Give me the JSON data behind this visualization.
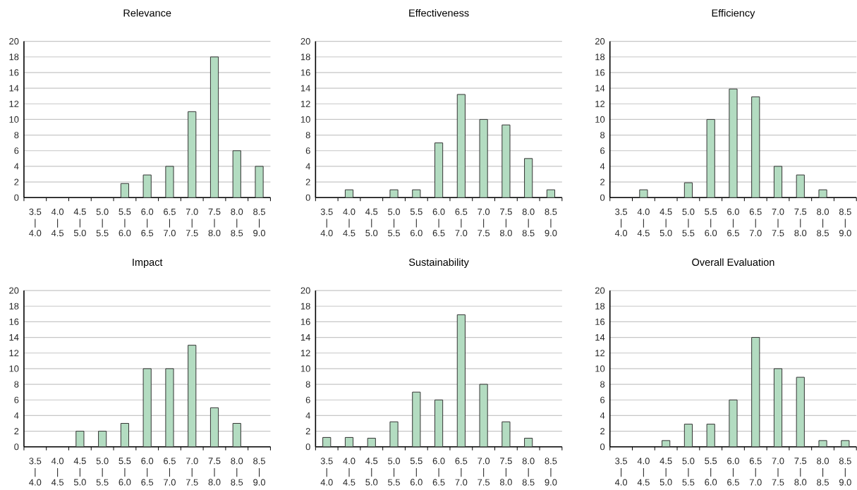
{
  "chart_data": [
    {
      "type": "bar",
      "title": "Relevance",
      "categories": [
        "3.5 | 4.0",
        "4.0 | 4.5",
        "4.5 | 5.0",
        "5.0 | 5.5",
        "5.5 | 6.0",
        "6.0 | 6.5",
        "6.5 | 7.0",
        "7.0 | 7.5",
        "7.5 | 8.0",
        "8.0 | 8.5",
        "8.5 | 9.0"
      ],
      "values": [
        0,
        0,
        0,
        0,
        1.8,
        2.9,
        4,
        11,
        18,
        6,
        4
      ],
      "color": "#b3dcc1",
      "ylim": [
        0,
        20
      ],
      "yticks": [
        0,
        2,
        4,
        6,
        8,
        10,
        12,
        14,
        16,
        18,
        20
      ],
      "grid": "y"
    },
    {
      "type": "bar",
      "title": "Effectiveness",
      "categories": [
        "3.5 | 4.0",
        "4.0 | 4.5",
        "4.5 | 5.0",
        "5.0 | 5.5",
        "5.5 | 6.0",
        "6.0 | 6.5",
        "6.5 | 7.0",
        "7.0 | 7.5",
        "7.5 | 8.0",
        "8.0 | 8.5",
        "8.5 | 9.0"
      ],
      "values": [
        0,
        1,
        0,
        1,
        1,
        7,
        13.2,
        10,
        9.3,
        5,
        1
      ],
      "color": "#b3dcc1",
      "ylim": [
        0,
        20
      ],
      "yticks": [
        0,
        2,
        4,
        6,
        8,
        10,
        12,
        14,
        16,
        18,
        20
      ],
      "grid": "y"
    },
    {
      "type": "bar",
      "title": "Efficiency",
      "categories": [
        "3.5 | 4.0",
        "4.0 | 4.5",
        "4.5 | 5.0",
        "5.0 | 5.5",
        "5.5 | 6.0",
        "6.0 | 6.5",
        "6.5 | 7.0",
        "7.0 | 7.5",
        "7.5 | 8.0",
        "8.0 | 8.5",
        "8.5 | 9.0"
      ],
      "values": [
        0,
        1,
        0,
        1.9,
        10,
        13.9,
        12.9,
        4,
        2.9,
        1,
        0
      ],
      "color": "#b3dcc1",
      "ylim": [
        0,
        20
      ],
      "yticks": [
        0,
        2,
        4,
        6,
        8,
        10,
        12,
        14,
        16,
        18,
        20
      ],
      "grid": "y"
    },
    {
      "type": "bar",
      "title": "Impact",
      "categories": [
        "3.5 | 4.0",
        "4.0 | 4.5",
        "4.5 | 5.0",
        "5.0 | 5.5",
        "5.5 | 6.0",
        "6.0 | 6.5",
        "6.5 | 7.0",
        "7.0 | 7.5",
        "7.5 | 8.0",
        "8.0 | 8.5",
        "8.5 | 9.0"
      ],
      "values": [
        0,
        0,
        2,
        2,
        3,
        10,
        10,
        13,
        5,
        3,
        0
      ],
      "color": "#b3dcc1",
      "ylim": [
        0,
        20
      ],
      "yticks": [
        0,
        2,
        4,
        6,
        8,
        10,
        12,
        14,
        16,
        18,
        20
      ],
      "grid": "y"
    },
    {
      "type": "bar",
      "title": "Sustainability",
      "categories": [
        "3.5 | 4.0",
        "4.0 | 4.5",
        "4.5 | 5.0",
        "5.0 | 5.5",
        "5.5 | 6.0",
        "6.0 | 6.5",
        "6.5 | 7.0",
        "7.0 | 7.5",
        "7.5 | 8.0",
        "8.0 | 8.5",
        "8.5 | 9.0"
      ],
      "values": [
        1.2,
        1.2,
        1.1,
        3.2,
        7,
        6,
        16.9,
        8,
        3.2,
        1.1,
        0
      ],
      "color": "#b3dcc1",
      "ylim": [
        0,
        20
      ],
      "yticks": [
        0,
        2,
        4,
        6,
        8,
        10,
        12,
        14,
        16,
        18,
        20
      ],
      "grid": "y"
    },
    {
      "type": "bar",
      "title": "Overall Evaluation",
      "categories": [
        "3.5 | 4.0",
        "4.0 | 4.5",
        "4.5 | 5.0",
        "5.0 | 5.5",
        "5.5 | 6.0",
        "6.0 | 6.5",
        "6.5 | 7.0",
        "7.0 | 7.5",
        "7.5 | 8.0",
        "8.0 | 8.5",
        "8.5 | 9.0"
      ],
      "values": [
        0,
        0,
        0.8,
        2.9,
        2.9,
        6,
        14,
        10,
        8.9,
        0.8,
        0.8
      ],
      "color": "#b3dcc1",
      "ylim": [
        0,
        20
      ],
      "yticks": [
        0,
        2,
        4,
        6,
        8,
        10,
        12,
        14,
        16,
        18,
        20
      ],
      "grid": "y"
    }
  ]
}
